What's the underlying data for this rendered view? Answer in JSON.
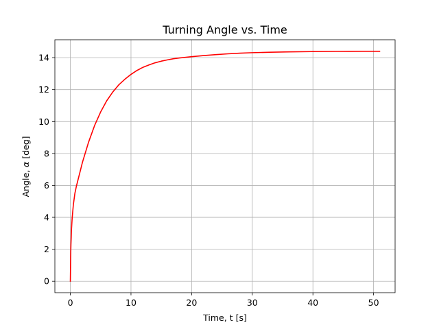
{
  "chart_data": {
    "type": "line",
    "title": "Turning Angle vs. Time",
    "xlabel": "Time, t [s]",
    "ylabel_prefix": "Angle, ",
    "ylabel_symbol": "α",
    "ylabel_suffix": " [deg]",
    "xlim": [
      -2.55,
      53.55
    ],
    "ylim": [
      -0.72,
      15.12
    ],
    "xticks": [
      0,
      10,
      20,
      30,
      40,
      50
    ],
    "yticks": [
      0,
      2,
      4,
      6,
      8,
      10,
      12,
      14
    ],
    "grid": true,
    "line_color": "#ff0000",
    "grid_color": "#b0b0b0",
    "series": [
      {
        "x": [
          0,
          0.05,
          0.1,
          0.2,
          0.3,
          0.5,
          0.75,
          1,
          1.5,
          2,
          3,
          4,
          5,
          6,
          7,
          8,
          9,
          10,
          11,
          12,
          13,
          14,
          15,
          16,
          17,
          18,
          20,
          22,
          24,
          26,
          28,
          30,
          33,
          36,
          40,
          44,
          48,
          51
        ],
        "y": [
          0,
          1.5,
          2.3,
          3.3,
          3.95,
          4.8,
          5.5,
          5.95,
          6.7,
          7.45,
          8.7,
          9.75,
          10.6,
          11.3,
          11.85,
          12.3,
          12.65,
          12.95,
          13.2,
          13.4,
          13.55,
          13.68,
          13.78,
          13.86,
          13.93,
          13.98,
          14.06,
          14.13,
          14.19,
          14.24,
          14.28,
          14.31,
          14.34,
          14.36,
          14.38,
          14.39,
          14.4,
          14.4
        ]
      }
    ]
  }
}
